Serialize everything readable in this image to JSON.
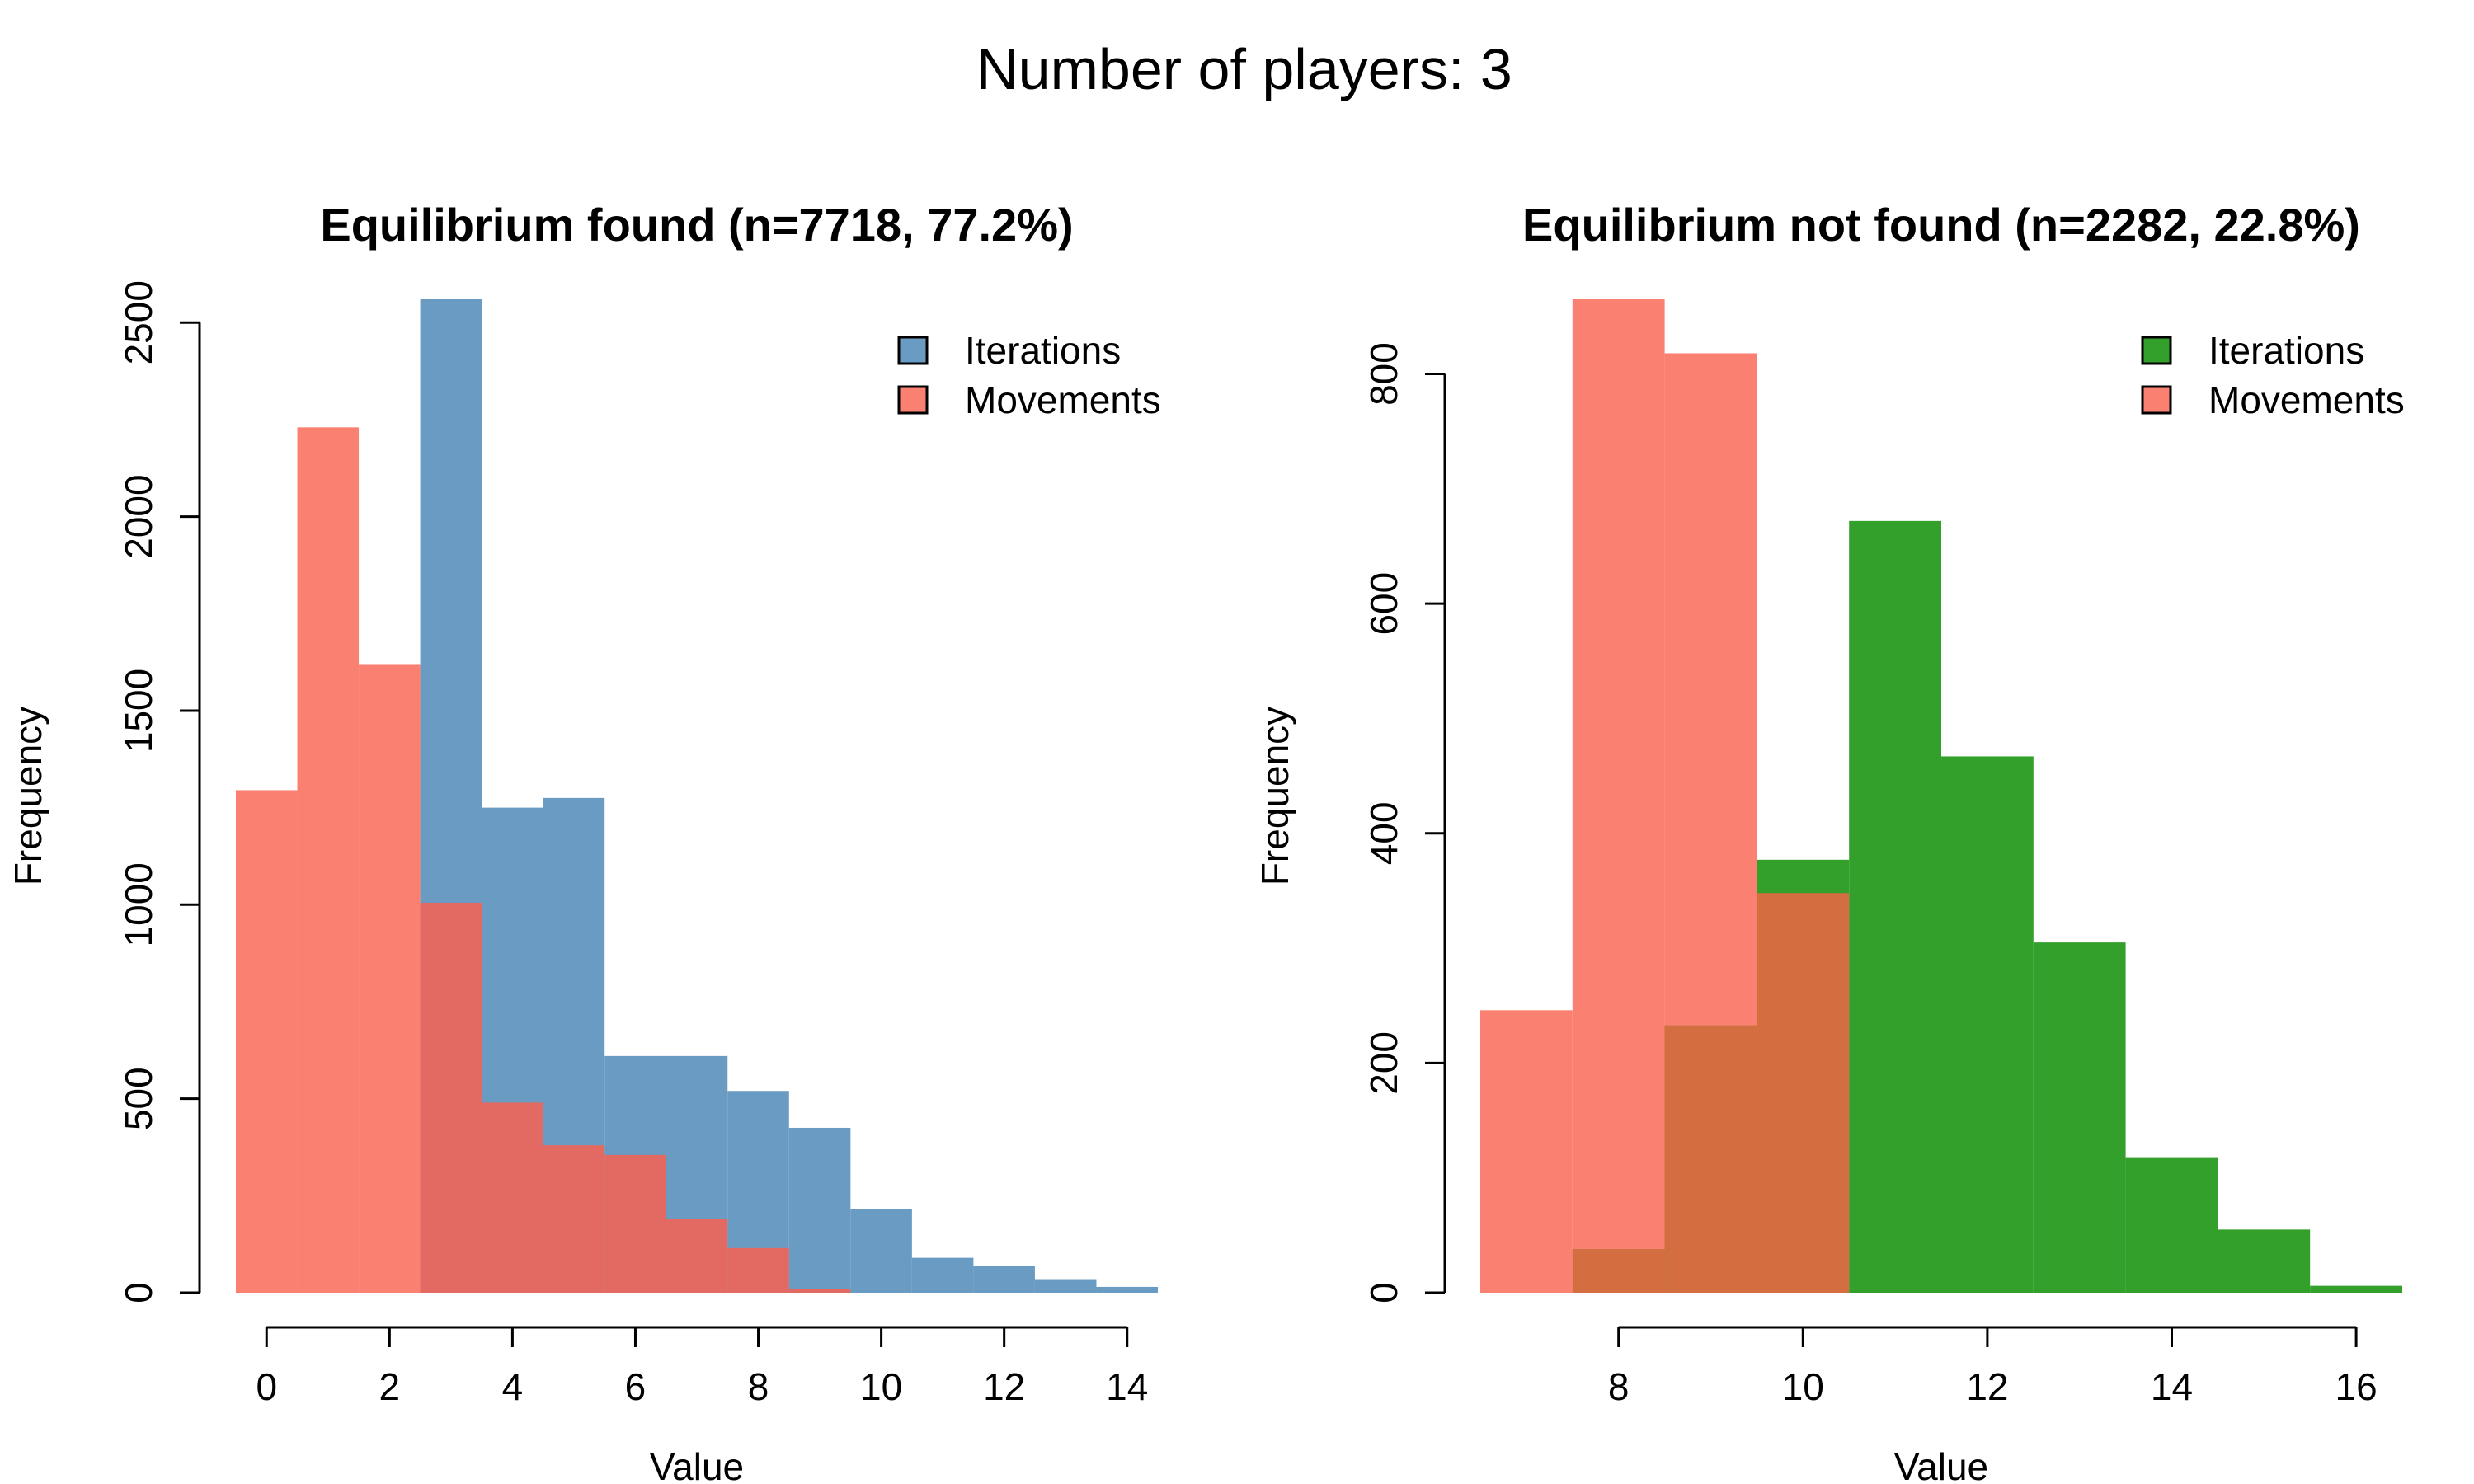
{
  "figure": {
    "suptitle": "Number of players: 3"
  },
  "chart_data": [
    {
      "type": "bar",
      "title": "Equilibrium found (n=7718, 77.2%)",
      "xlabel": "Value",
      "ylabel": "Frequency",
      "xlim": [
        -0.5,
        14.5
      ],
      "ylim": [
        0,
        2560
      ],
      "xticks": [
        0,
        2,
        4,
        6,
        8,
        10,
        12,
        14
      ],
      "yticks": [
        0,
        500,
        1000,
        1500,
        2000,
        2500
      ],
      "grid": false,
      "legend_position": "top-right",
      "series": [
        {
          "name": "Iterations",
          "color": "#6a9bc3",
          "bins": [
            [
              2.5,
              3.5
            ],
            [
              3.5,
              4.5
            ],
            [
              4.5,
              5.5
            ],
            [
              5.5,
              6.5
            ],
            [
              6.5,
              7.5
            ],
            [
              7.5,
              8.5
            ],
            [
              8.5,
              9.5
            ],
            [
              9.5,
              10.5
            ],
            [
              10.5,
              11.5
            ],
            [
              11.5,
              12.5
            ],
            [
              12.5,
              13.5
            ],
            [
              13.5,
              14.5
            ]
          ],
          "values": [
            2560,
            1250,
            1275,
            610,
            610,
            520,
            425,
            215,
            90,
            70,
            35,
            15
          ]
        },
        {
          "name": "Movements",
          "color": "#fa8072",
          "overlap_color": "#e26a62",
          "bins": [
            [
              -0.5,
              0.5
            ],
            [
              0.5,
              1.5
            ],
            [
              1.5,
              2.5
            ],
            [
              2.5,
              3.5
            ],
            [
              3.5,
              4.5
            ],
            [
              4.5,
              5.5
            ],
            [
              5.5,
              6.5
            ],
            [
              6.5,
              7.5
            ],
            [
              7.5,
              8.5
            ],
            [
              8.5,
              9.5
            ]
          ],
          "values": [
            1295,
            2230,
            1620,
            1005,
            490,
            380,
            355,
            190,
            115,
            10
          ]
        }
      ]
    },
    {
      "type": "bar",
      "title": "Equilibrium not found (n=2282, 22.8%)",
      "xlabel": "Value",
      "ylabel": "Frequency",
      "xlim": [
        6.5,
        16.5
      ],
      "ylim": [
        0,
        865
      ],
      "xticks": [
        8,
        10,
        12,
        14,
        16
      ],
      "yticks": [
        0,
        200,
        400,
        600,
        800
      ],
      "grid": false,
      "legend_position": "top-right",
      "series": [
        {
          "name": "Iterations",
          "color": "#33a02c",
          "bins": [
            [
              7.5,
              8.5
            ],
            [
              8.5,
              9.5
            ],
            [
              9.5,
              10.5
            ],
            [
              10.5,
              11.5
            ],
            [
              11.5,
              12.5
            ],
            [
              12.5,
              13.5
            ],
            [
              13.5,
              14.5
            ],
            [
              14.5,
              15.5
            ],
            [
              15.5,
              16.5
            ]
          ],
          "values": [
            38,
            233,
            377,
            672,
            467,
            305,
            118,
            55,
            6
          ]
        },
        {
          "name": "Movements",
          "color": "#fa8072",
          "overlap_color": "#d46e40",
          "bins": [
            [
              6.5,
              7.5
            ],
            [
              7.5,
              8.5
            ],
            [
              8.5,
              9.5
            ],
            [
              9.5,
              10.5
            ]
          ],
          "values": [
            246,
            865,
            818,
            348
          ]
        }
      ]
    }
  ]
}
